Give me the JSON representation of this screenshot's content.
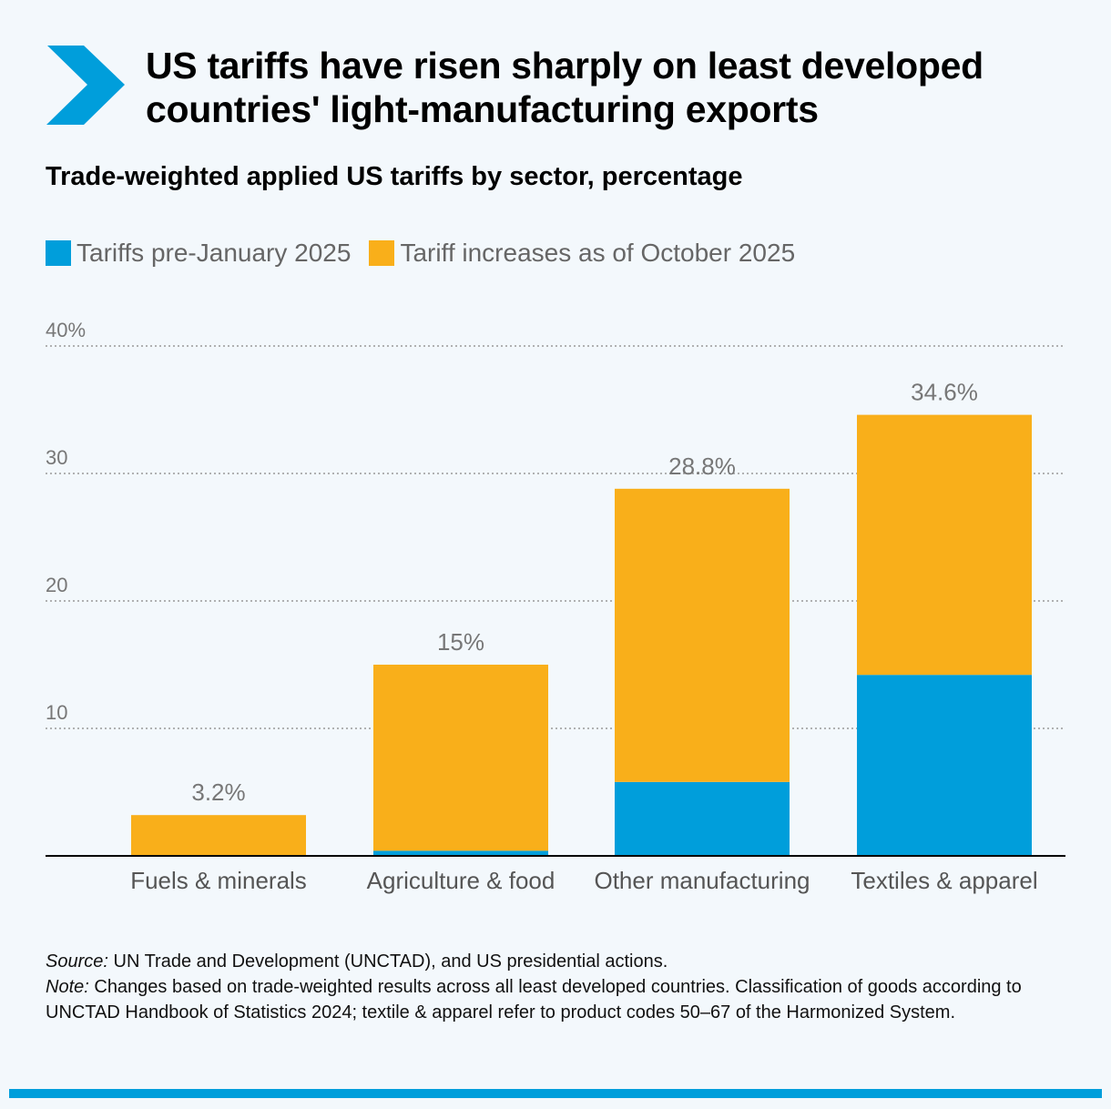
{
  "header": {
    "title": "US tariffs have risen sharply on least developed countries' light-manufacturing exports",
    "subtitle": "Trade-weighted applied US tariffs by sector, percentage",
    "logo_icon": "chevron-right-icon",
    "accent": "#009edb"
  },
  "chart_data": {
    "type": "bar",
    "stacked": true,
    "categories": [
      "Fuels & minerals",
      "Agriculture & food",
      "Other manufacturing",
      "Textiles & apparel"
    ],
    "series": [
      {
        "name": "Tariffs pre-January 2025",
        "color": "#009edb",
        "values": [
          0,
          0.4,
          5.8,
          14.2
        ]
      },
      {
        "name": "Tariff increases as of October 2025",
        "color": "#f9af1a",
        "values": [
          3.2,
          14.6,
          23.0,
          20.4
        ]
      }
    ],
    "totals_labels": [
      "3.2%",
      "15%",
      "28.8%",
      "34.6%"
    ],
    "totals": [
      3.2,
      15,
      28.8,
      34.6
    ],
    "yticks": [
      10,
      20,
      30,
      40
    ],
    "ytick_labels": [
      "10",
      "20",
      "30",
      "40%"
    ],
    "ylim": [
      0,
      40
    ],
    "grid": true,
    "legend": "top-left"
  },
  "footer": {
    "source_label": "Source:",
    "source_text": " UN Trade and Development (UNCTAD), and US presidential actions.",
    "note_label": "Note:",
    "note_text": " Changes based on trade-weighted results across all least developed countries. Classification of goods according to UNCTAD Handbook of Statistics 2024; textile & apparel refer to product codes 50–67 of the Harmonized System."
  }
}
